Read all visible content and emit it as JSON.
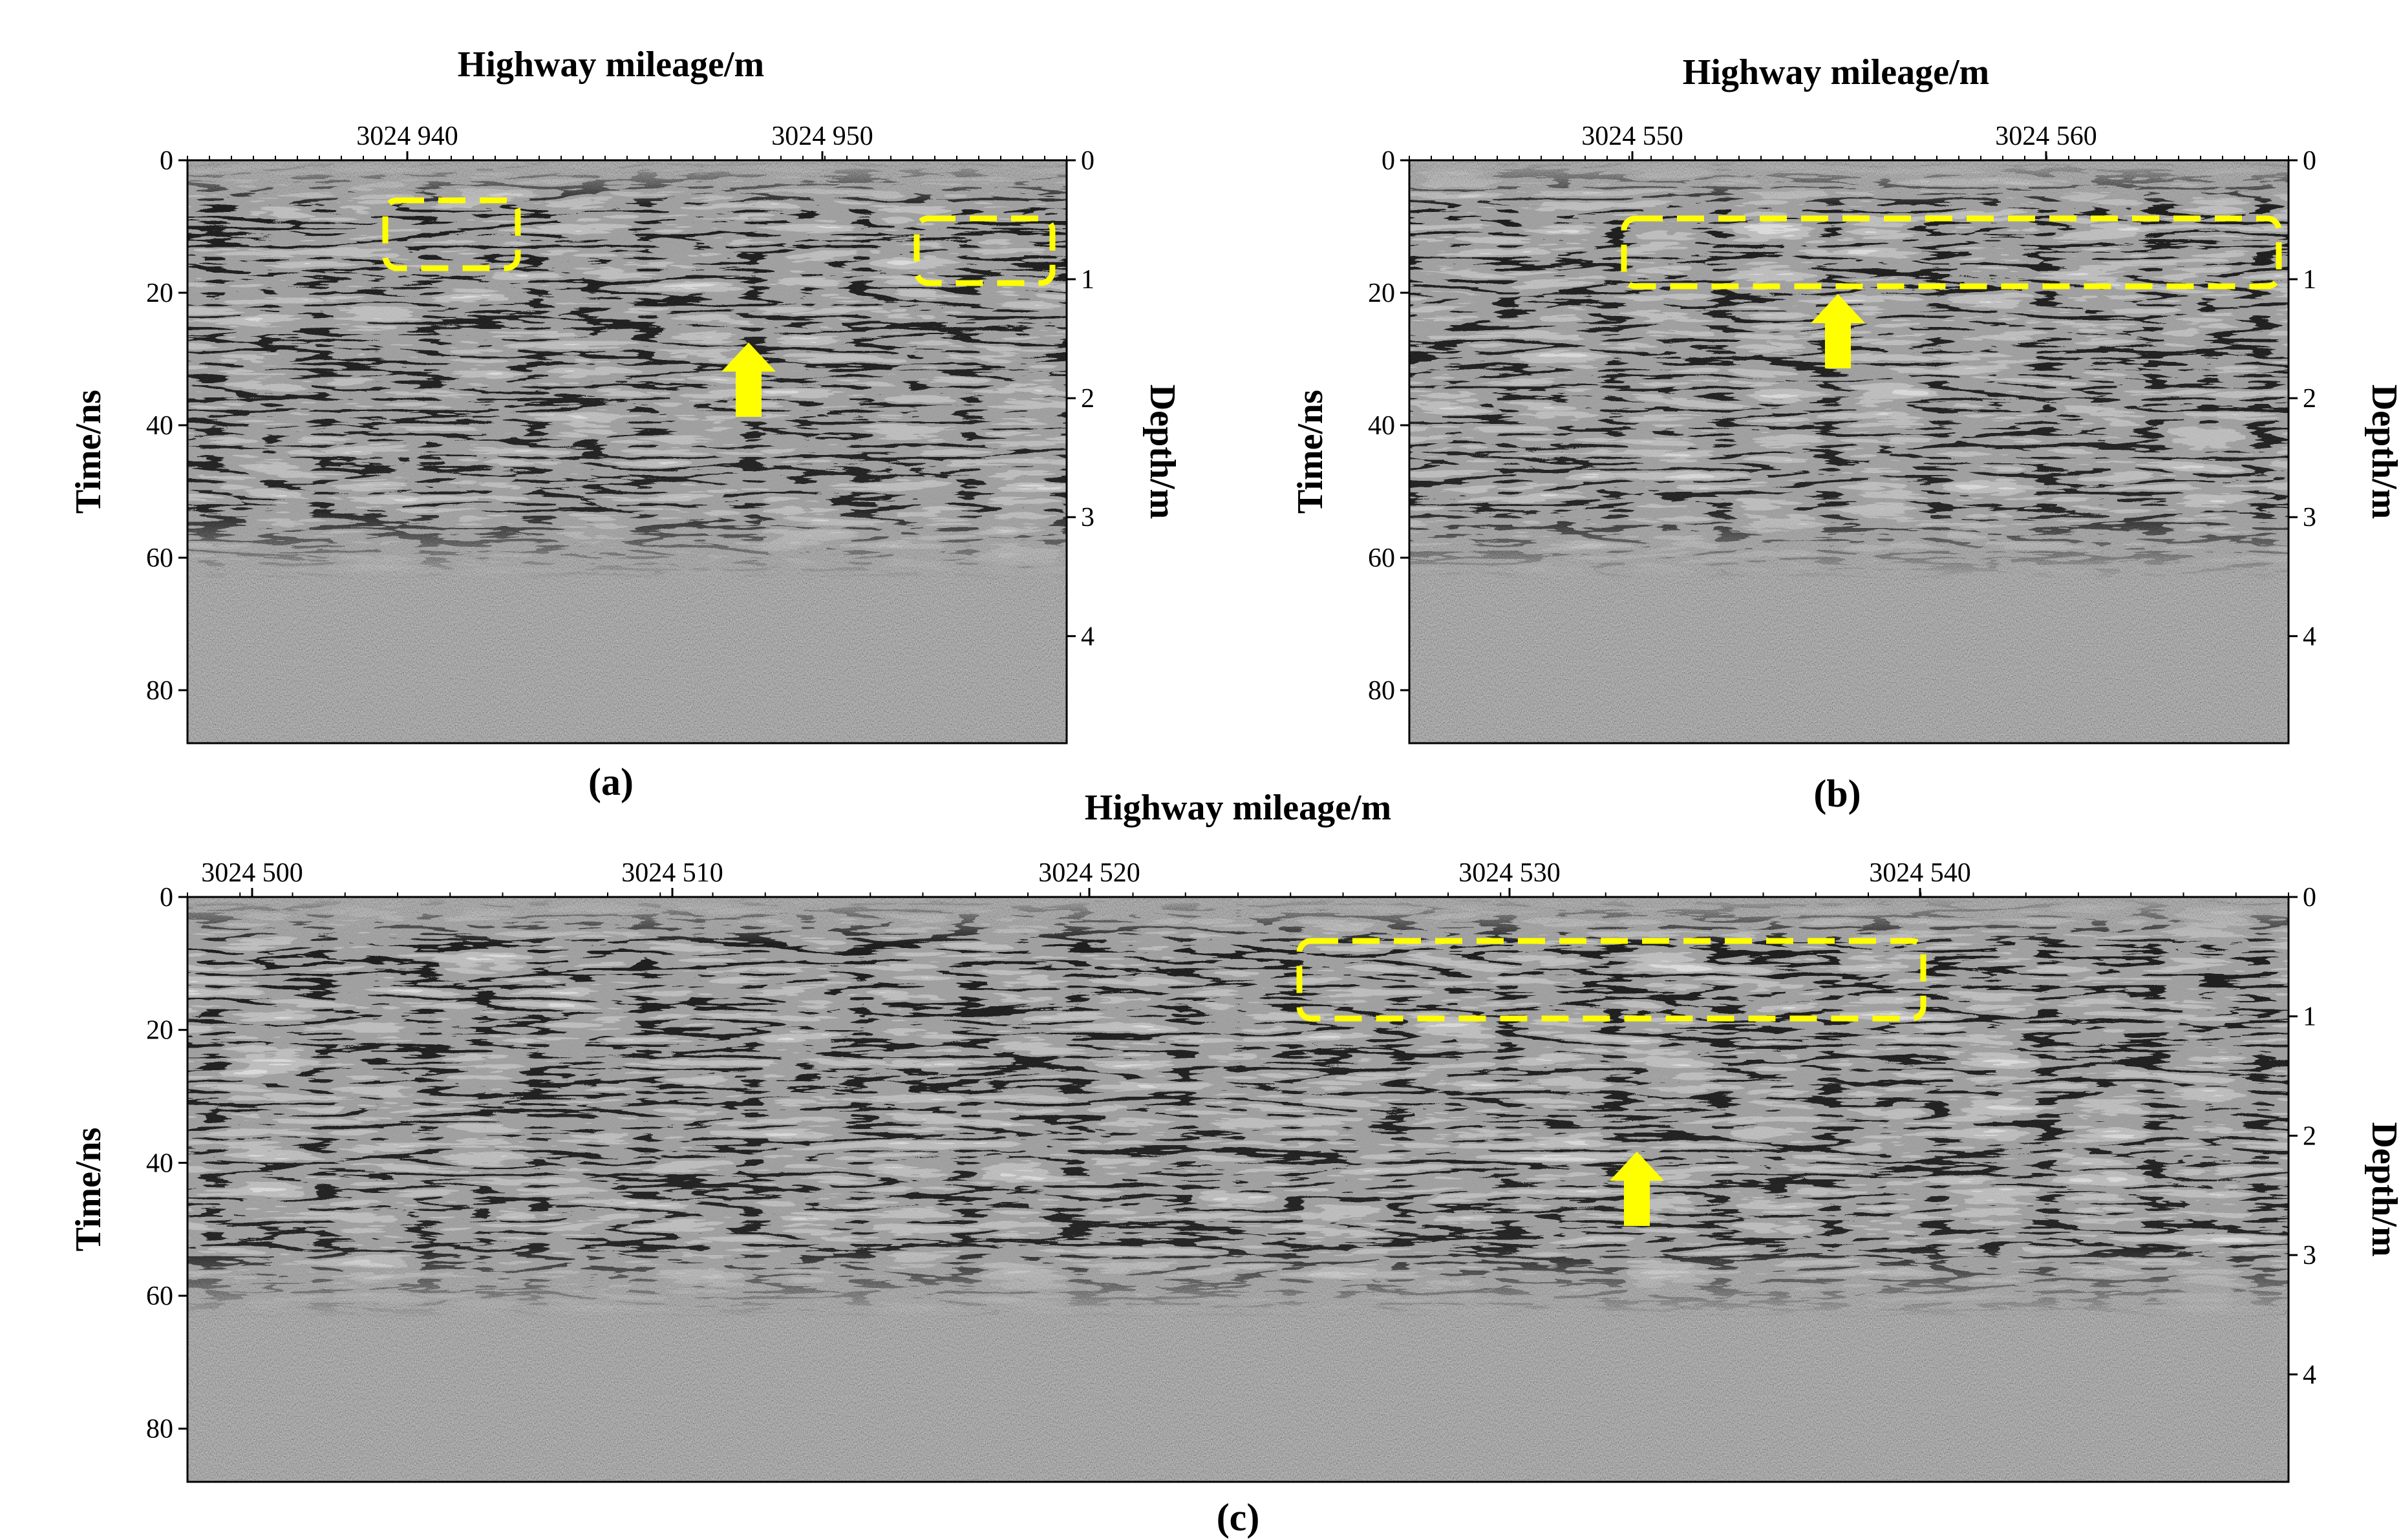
{
  "panels": [
    {
      "id": "a",
      "caption": "(a)",
      "x_label": "Highway mileage/m",
      "y_label_left": "Time/ns",
      "y_label_right": "Depth/m",
      "x_ticks": [
        "3024 940",
        "3024 950"
      ],
      "time_ticks": [
        "0",
        "20",
        "40",
        "60",
        "80"
      ],
      "depth_ticks": [
        "0",
        "1",
        "2",
        "3",
        "4"
      ],
      "annotations": {
        "dashed_boxes": 2,
        "arrows": 1,
        "color": "#ffff00"
      }
    },
    {
      "id": "b",
      "caption": "(b)",
      "x_label": "Highway mileage/m",
      "y_label_left": "Time/ns",
      "y_label_right": "Depth/m",
      "x_ticks": [
        "3024 550",
        "3024 560"
      ],
      "time_ticks": [
        "0",
        "20",
        "40",
        "60",
        "80"
      ],
      "depth_ticks": [
        "0",
        "1",
        "2",
        "3",
        "4"
      ],
      "annotations": {
        "dashed_boxes": 1,
        "arrows": 1,
        "color": "#ffff00"
      }
    },
    {
      "id": "c",
      "caption": "(c)",
      "x_label": "Highway mileage/m",
      "y_label_left": "Time/ns",
      "y_label_right": "Depth/m",
      "x_ticks": [
        "3024 500",
        "3024 510",
        "3024 520",
        "3024 530",
        "3024 540"
      ],
      "time_ticks": [
        "0",
        "20",
        "40",
        "60",
        "80"
      ],
      "depth_ticks": [
        "0",
        "1",
        "2",
        "3",
        "4"
      ],
      "annotations": {
        "dashed_boxes": 1,
        "arrows": 1,
        "color": "#ffff00"
      }
    }
  ],
  "colors": {
    "radargram_gray": "#8c8c8c",
    "annotation_yellow": "#ffff00",
    "axis": "#000000"
  }
}
